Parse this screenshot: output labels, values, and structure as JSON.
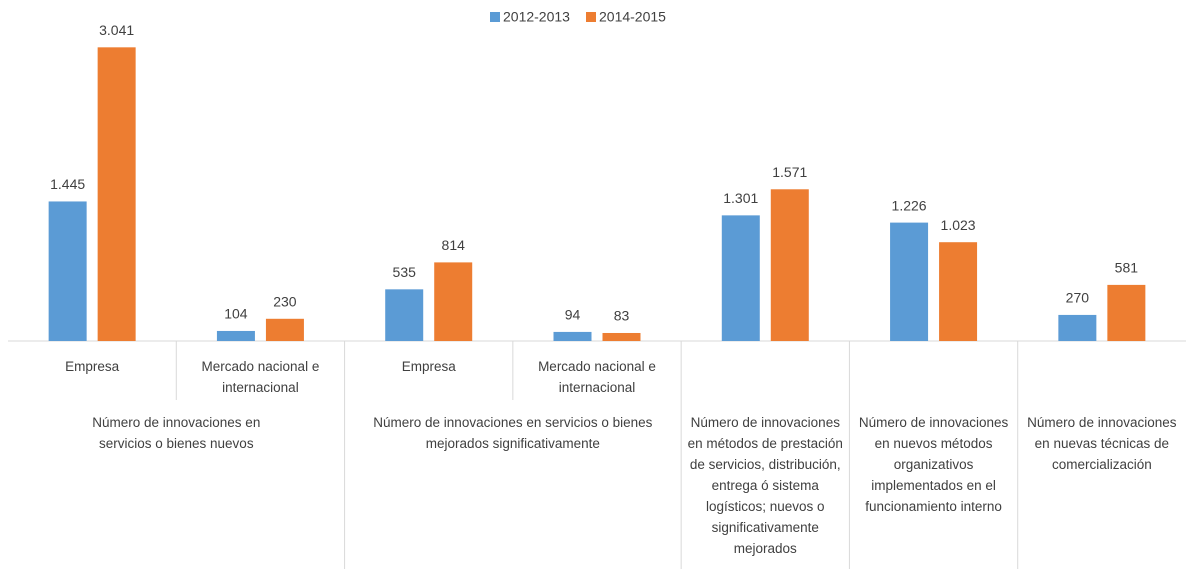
{
  "chart_data": {
    "type": "bar",
    "groups": [
      {
        "label": "Número de innovaciones en servicios o bienes nuevos",
        "categories": [
          "Empresa",
          "Mercado nacional e internacional"
        ]
      },
      {
        "label": "Número de innovaciones en servicios o bienes mejorados significativamente",
        "categories": [
          "Empresa",
          "Mercado nacional e internacional"
        ]
      },
      {
        "label": "Número de innovaciones en métodos de prestación de servicios, distribución, entrega ó sistema logísticos; nuevos o significativamente mejorados",
        "categories": [
          null
        ]
      },
      {
        "label": "Número de innovaciones en nuevos métodos organizativos implementados en el funcionamiento interno",
        "categories": [
          null
        ]
      },
      {
        "label": "Número de innovaciones en nuevas técnicas de comercialización",
        "categories": [
          null
        ]
      }
    ],
    "series": [
      {
        "name": "2012-2013",
        "color": "#5b9bd5",
        "values": [
          1445,
          104,
          535,
          94,
          1301,
          1226,
          270
        ],
        "value_labels": [
          "1.445",
          "104",
          "535",
          "94",
          "1.301",
          "1.226",
          "270"
        ]
      },
      {
        "name": "2014-2015",
        "color": "#ed7d31",
        "values": [
          3041,
          230,
          814,
          83,
          1571,
          1023,
          581
        ],
        "value_labels": [
          "3.041",
          "230",
          "814",
          "83",
          "1.571",
          "1.023",
          "581"
        ]
      }
    ],
    "ylim": [
      0,
      3500
    ],
    "legend": "top"
  }
}
